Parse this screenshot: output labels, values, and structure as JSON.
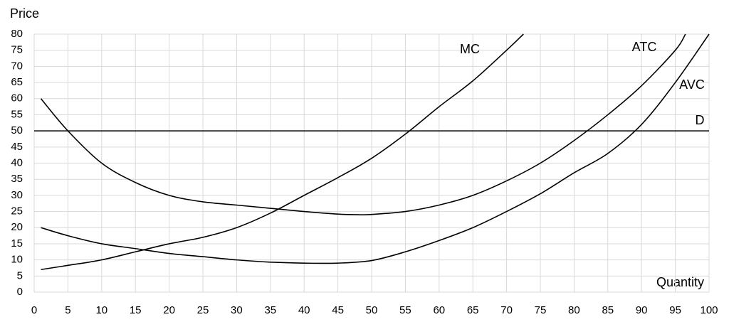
{
  "chart_data": {
    "type": "line",
    "y_label": "Price",
    "x_label": "Quantity",
    "xlim": [
      0,
      100
    ],
    "ylim": [
      0,
      80
    ],
    "xticks": [
      0,
      5,
      10,
      15,
      20,
      25,
      30,
      35,
      40,
      45,
      50,
      55,
      60,
      65,
      70,
      75,
      80,
      85,
      90,
      95,
      100
    ],
    "yticks": [
      0,
      5,
      10,
      15,
      20,
      25,
      30,
      35,
      40,
      45,
      50,
      55,
      60,
      65,
      70,
      75,
      80
    ],
    "grid": true,
    "series": [
      {
        "name": "MC",
        "color": "#000000",
        "x": [
          1,
          5,
          10,
          15,
          20,
          25,
          30,
          35,
          40,
          45,
          50,
          55,
          60,
          65,
          70,
          72.5
        ],
        "values": [
          7,
          8.3,
          10,
          12.5,
          15,
          17,
          20,
          24.5,
          30,
          35.5,
          41.5,
          49,
          57.5,
          65.5,
          75,
          80
        ]
      },
      {
        "name": "ATC",
        "color": "#000000",
        "x": [
          1,
          5,
          10,
          15,
          20,
          25,
          30,
          35,
          40,
          45,
          48,
          50,
          55,
          60,
          65,
          70,
          75,
          80,
          85,
          90,
          95,
          96.5
        ],
        "values": [
          60,
          50,
          40,
          34,
          30,
          28,
          27,
          26,
          25,
          24.2,
          24,
          24.1,
          25,
          27,
          30,
          34.5,
          40,
          47,
          55,
          64,
          75,
          80
        ]
      },
      {
        "name": "AVC",
        "color": "#000000",
        "x": [
          1,
          5,
          10,
          15,
          20,
          25,
          30,
          35,
          40,
          45,
          50,
          55,
          60,
          65,
          70,
          75,
          80,
          85,
          90,
          95,
          100
        ],
        "values": [
          20,
          17.5,
          15,
          13.5,
          12,
          11,
          10,
          9.3,
          9,
          9,
          9.8,
          12.5,
          16,
          20,
          25,
          30.5,
          37,
          43,
          52,
          65,
          80
        ]
      },
      {
        "name": "D",
        "color": "#000000",
        "x": [
          0,
          100
        ],
        "values": [
          50,
          50
        ]
      }
    ]
  }
}
